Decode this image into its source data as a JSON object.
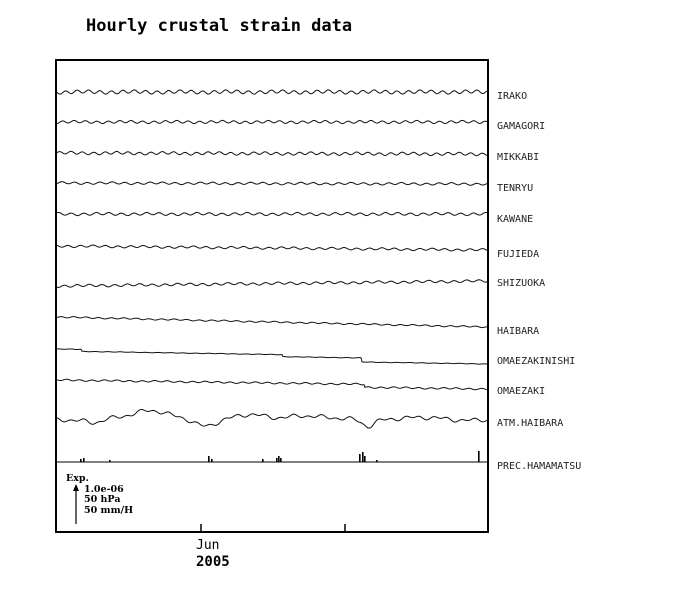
{
  "title": "Hourly crustal strain data",
  "chart_data": {
    "type": "line",
    "x_axis": {
      "tick_label": "Jun",
      "year": "2005"
    },
    "stations": [
      {
        "name": "IRAKO"
      },
      {
        "name": "GAMAGORI"
      },
      {
        "name": "MIKKABI"
      },
      {
        "name": "TENRYU"
      },
      {
        "name": "KAWANE"
      },
      {
        "name": "FUJIEDA"
      },
      {
        "name": "SHIZUOKA"
      },
      {
        "name": "HAIBARA"
      },
      {
        "name": "OMAEZAKINISHI"
      },
      {
        "name": "OMAEZAKI"
      },
      {
        "name": "ATM.HAIBARA"
      },
      {
        "name": "PREC.HAMAMATSU"
      }
    ],
    "scale": {
      "label": "Exp.",
      "strain": "1.0e-06",
      "pressure": "50 hPa",
      "precipitation": "50 mm/H"
    }
  }
}
